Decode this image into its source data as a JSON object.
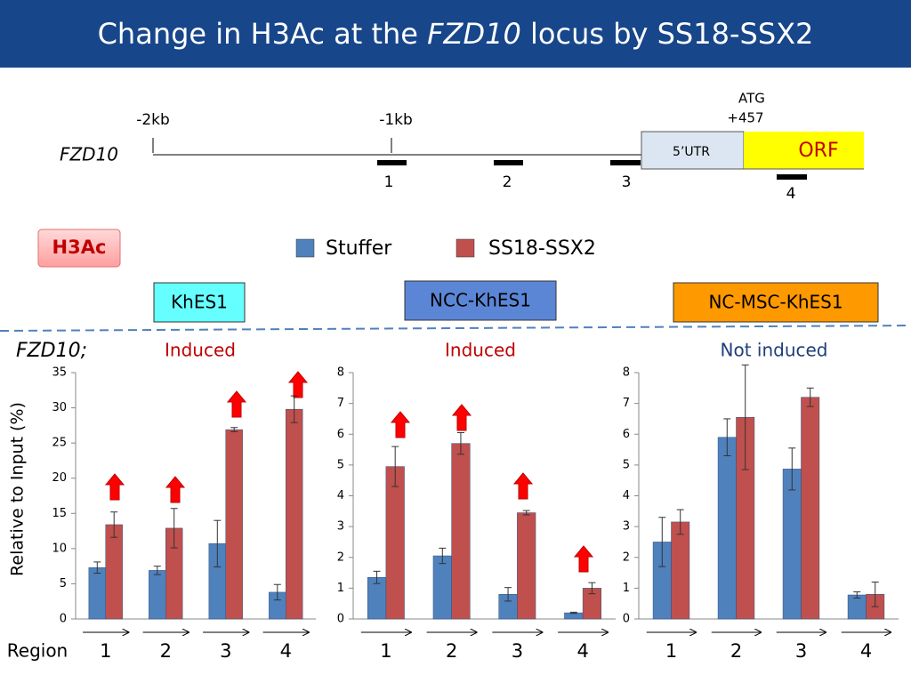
{
  "title_parts": [
    "Change in H3Ac at the ",
    "FZD10",
    " locus by SS18-SSX2"
  ],
  "gene": {
    "name": "FZD10",
    "marks": [
      "-2kb",
      "-1kb"
    ],
    "atg": [
      "ATG",
      "+457"
    ],
    "utr": "5’UTR",
    "orf": "ORF",
    "regions": [
      "1",
      "2",
      "3",
      "4"
    ]
  },
  "mark_label": "H3Ac",
  "legend": [
    {
      "name": "Stuffer",
      "color": "#4f81bd"
    },
    {
      "name": "SS18-SSX2",
      "color": "#c0504d"
    }
  ],
  "row_label": "FZD10;",
  "y_label": "Relative to Input (%)",
  "x_label": "Region",
  "chart_data": [
    {
      "type": "bar",
      "cell_line": "KhES1",
      "title": "Induced",
      "title_color": "#c00000",
      "categories": [
        "1",
        "2",
        "3",
        "4"
      ],
      "ylim": [
        0,
        35
      ],
      "yticks": [
        0,
        5,
        10,
        15,
        20,
        25,
        30,
        35
      ],
      "series": [
        {
          "color": "#4f81bd",
          "values": [
            7.3,
            6.9,
            10.7,
            3.8
          ],
          "errors": [
            0.8,
            0.6,
            3.3,
            1.1
          ]
        },
        {
          "color": "#c0504d",
          "values": [
            13.4,
            12.9,
            26.9,
            29.8
          ],
          "errors": [
            1.8,
            2.8,
            0.3,
            1.9
          ]
        }
      ]
    },
    {
      "type": "bar",
      "cell_line": "NCC-KhES1",
      "title": "Induced",
      "title_color": "#c00000",
      "categories": [
        "1",
        "2",
        "3",
        "4"
      ],
      "ylim": [
        0,
        8
      ],
      "yticks": [
        0,
        1,
        2,
        3,
        4,
        5,
        6,
        7,
        8
      ],
      "series": [
        {
          "color": "#4f81bd",
          "values": [
            1.35,
            2.05,
            0.8,
            0.2
          ],
          "errors": [
            0.2,
            0.25,
            0.22,
            0.02
          ]
        },
        {
          "color": "#c0504d",
          "values": [
            4.95,
            5.7,
            3.45,
            1.0
          ],
          "errors": [
            0.65,
            0.35,
            0.07,
            0.18
          ]
        }
      ]
    },
    {
      "type": "bar",
      "cell_line": "NC-MSC-KhES1",
      "title": "Not induced",
      "title_color": "#1f3f7a",
      "categories": [
        "1",
        "2",
        "3",
        "4"
      ],
      "ylim": [
        0,
        8
      ],
      "yticks": [
        0,
        1,
        2,
        3,
        4,
        5,
        6,
        7,
        8
      ],
      "series": [
        {
          "color": "#4f81bd",
          "values": [
            2.5,
            5.9,
            4.87,
            0.78
          ],
          "errors": [
            0.8,
            0.6,
            0.68,
            0.1
          ]
        },
        {
          "color": "#c0504d",
          "values": [
            3.15,
            6.55,
            7.2,
            0.8
          ],
          "errors": [
            0.4,
            1.7,
            0.3,
            0.4
          ]
        }
      ]
    }
  ]
}
